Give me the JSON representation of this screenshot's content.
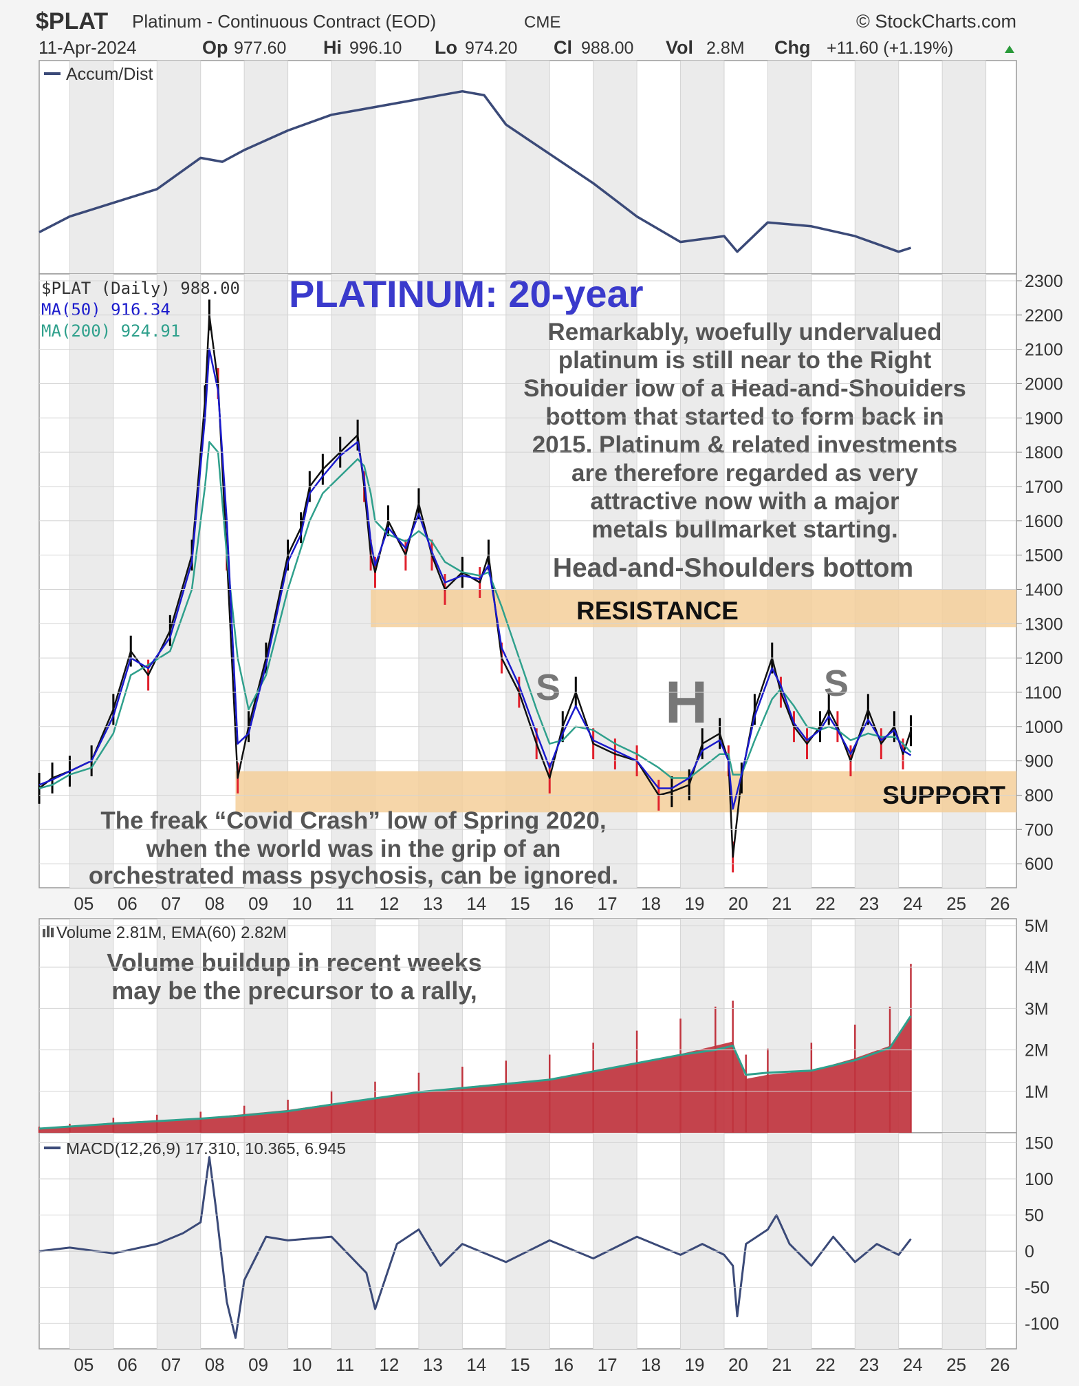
{
  "header": {
    "symbol": "$PLAT",
    "name": "Platinum - Continuous Contract (EOD)",
    "exchange": "CME",
    "copyright": "© StockCharts.com",
    "date": "11-Apr-2024",
    "op_label": "Op",
    "op": "977.60",
    "hi_label": "Hi",
    "hi": "996.10",
    "lo_label": "Lo",
    "lo": "974.20",
    "cl_label": "Cl",
    "cl": "988.00",
    "vol_label": "Vol",
    "vol": "2.8M",
    "chg_label": "Chg",
    "chg": "+11.60 (+1.19%)",
    "chg_icon": "up-triangle-icon"
  },
  "colors": {
    "price_up": "#000000",
    "price_down": "#e0202c",
    "ma50": "#1a1acc",
    "ma200": "#2fa08c",
    "line": "#3b4a78",
    "volume": "#c0343e",
    "band": "#f5cf9a",
    "title": "#3a3acc",
    "annotation": "#555555"
  },
  "chart_data": [
    {
      "type": "line",
      "panel": "accum-dist",
      "legend": "Accum/Dist",
      "x": [
        2004.3,
        2005,
        2006,
        2007,
        2008,
        2008.5,
        2009,
        2010,
        2011,
        2012,
        2013,
        2014,
        2014.5,
        2015,
        2016,
        2017,
        2018,
        2019,
        2020,
        2020.3,
        2021,
        2022,
        2023,
        2024,
        2024.28
      ],
      "values": [
        0,
        8,
        15,
        22,
        38,
        36,
        42,
        52,
        60,
        64,
        68,
        72,
        70,
        55,
        40,
        25,
        8,
        -5,
        -2,
        -10,
        5,
        3,
        -2,
        -10,
        -8
      ]
    },
    {
      "type": "line",
      "panel": "price",
      "title": "PLATINUM: 20-year",
      "legend": [
        "$PLAT (Daily) 988.00",
        "MA(50) 916.34",
        "MA(200) 924.91"
      ],
      "x_ticks": [
        "05",
        "06",
        "07",
        "08",
        "09",
        "10",
        "11",
        "12",
        "13",
        "14",
        "15",
        "16",
        "17",
        "18",
        "19",
        "20",
        "21",
        "22",
        "23",
        "24",
        "25",
        "26"
      ],
      "y_ticks": [
        600,
        700,
        800,
        900,
        1000,
        1100,
        1200,
        1300,
        1400,
        1500,
        1600,
        1700,
        1800,
        1900,
        2000,
        2100,
        2200,
        2300
      ],
      "ylim": [
        530,
        2320
      ],
      "x": [
        2004.3,
        2004.6,
        2005,
        2005.5,
        2006,
        2006.4,
        2006.8,
        2007.3,
        2007.8,
        2008.1,
        2008.2,
        2008.4,
        2008.6,
        2008.85,
        2009.1,
        2009.5,
        2010,
        2010.3,
        2010.5,
        2010.8,
        2011.2,
        2011.6,
        2011.75,
        2011.9,
        2012,
        2012.3,
        2012.7,
        2013,
        2013.3,
        2013.6,
        2014,
        2014.4,
        2014.6,
        2014.9,
        2015.3,
        2015.7,
        2016,
        2016.3,
        2016.6,
        2017,
        2017.5,
        2018,
        2018.5,
        2018.8,
        2019.2,
        2019.5,
        2019.9,
        2020.1,
        2020.2,
        2020.4,
        2020.7,
        2021.1,
        2021.3,
        2021.6,
        2021.9,
        2022.2,
        2022.4,
        2022.6,
        2022.9,
        2023.3,
        2023.6,
        2023.9,
        2024.1,
        2024.28
      ],
      "series": [
        {
          "name": "$PLAT (Daily)",
          "values": [
            820,
            850,
            870,
            900,
            1050,
            1220,
            1150,
            1280,
            1500,
            1950,
            2200,
            2000,
            1500,
            850,
            1000,
            1200,
            1500,
            1580,
            1700,
            1750,
            1800,
            1850,
            1700,
            1500,
            1450,
            1600,
            1500,
            1650,
            1500,
            1400,
            1450,
            1420,
            1500,
            1200,
            1100,
            950,
            850,
            1000,
            1100,
            950,
            920,
            900,
            800,
            810,
            830,
            950,
            980,
            900,
            620,
            850,
            1050,
            1200,
            1100,
            1000,
            950,
            1000,
            1050,
            1000,
            900,
            1050,
            950,
            1000,
            920,
            988
          ]
        },
        {
          "name": "MA(50)",
          "values": [
            830,
            845,
            870,
            900,
            1030,
            1200,
            1170,
            1260,
            1480,
            1900,
            2100,
            1980,
            1600,
            950,
            980,
            1180,
            1480,
            1560,
            1680,
            1730,
            1790,
            1830,
            1720,
            1540,
            1470,
            1580,
            1520,
            1620,
            1510,
            1420,
            1440,
            1430,
            1470,
            1230,
            1120,
            980,
            880,
            980,
            1060,
            960,
            930,
            900,
            820,
            820,
            850,
            930,
            960,
            900,
            760,
            860,
            1030,
            1170,
            1120,
            1010,
            960,
            990,
            1030,
            990,
            920,
            1020,
            960,
            990,
            930,
            916
          ]
        },
        {
          "name": "MA(200)",
          "values": [
            820,
            830,
            860,
            880,
            980,
            1150,
            1180,
            1220,
            1400,
            1700,
            1830,
            1800,
            1500,
            1200,
            1050,
            1150,
            1400,
            1520,
            1600,
            1680,
            1730,
            1780,
            1760,
            1680,
            1600,
            1560,
            1540,
            1570,
            1540,
            1480,
            1450,
            1440,
            1450,
            1350,
            1200,
            1050,
            950,
            960,
            1000,
            990,
            950,
            920,
            880,
            850,
            850,
            880,
            920,
            920,
            860,
            860,
            960,
            1080,
            1110,
            1060,
            1000,
            990,
            1000,
            990,
            960,
            980,
            970,
            970,
            950,
            925
          ]
        }
      ],
      "annotations": {
        "resistance_label": "RESISTANCE",
        "support_label": "SUPPORT",
        "resistance_band": [
          1290,
          1400
        ],
        "support_band": [
          750,
          870
        ],
        "pattern_label": "Head-and-Shoulders bottom",
        "left_shoulder": "S",
        "head": "H",
        "right_shoulder": "S"
      }
    },
    {
      "type": "bar",
      "panel": "volume",
      "legend": "Volume 2.81M, EMA(60) 2.82M",
      "y_ticks": [
        "1M",
        "2M",
        "3M",
        "4M",
        "5M"
      ],
      "ylim": [
        0,
        5000000
      ],
      "x": [
        2004.3,
        2005,
        2006,
        2007,
        2008,
        2009,
        2010,
        2011,
        2012,
        2013,
        2014,
        2015,
        2016,
        2017,
        2018,
        2019,
        2019.8,
        2020.2,
        2020.5,
        2021,
        2022,
        2023,
        2023.8,
        2024.28
      ],
      "values": [
        100000,
        150000,
        250000,
        300000,
        350000,
        450000,
        550000,
        700000,
        850000,
        1000000,
        1100000,
        1200000,
        1300000,
        1500000,
        1700000,
        1900000,
        2100000,
        2200000,
        1300000,
        1400000,
        1500000,
        1800000,
        2100000,
        2810000
      ],
      "ema": [
        100000,
        150000,
        220000,
        280000,
        340000,
        420000,
        520000,
        680000,
        830000,
        980000,
        1080000,
        1180000,
        1280000,
        1480000,
        1680000,
        1880000,
        2000000,
        2100000,
        1400000,
        1450000,
        1500000,
        1750000,
        2050000,
        2820000
      ]
    },
    {
      "type": "line",
      "panel": "macd",
      "legend": "MACD(12,26,9) 17.310, 10.365, 6.945",
      "y_ticks": [
        -100,
        -50,
        0,
        50,
        100,
        150
      ],
      "ylim": [
        -135,
        160
      ],
      "x": [
        2004.3,
        2005,
        2006,
        2007,
        2007.6,
        2008,
        2008.2,
        2008.35,
        2008.6,
        2008.8,
        2009,
        2009.5,
        2010,
        2011,
        2011.8,
        2012,
        2012.5,
        2013,
        2013.5,
        2014,
        2015,
        2016,
        2017,
        2018,
        2019,
        2019.5,
        2020,
        2020.2,
        2020.3,
        2020.5,
        2021,
        2021.2,
        2021.5,
        2022,
        2022.5,
        2023,
        2023.5,
        2024,
        2024.28
      ],
      "values": [
        0,
        5,
        -3,
        10,
        25,
        40,
        130,
        60,
        -70,
        -120,
        -40,
        20,
        15,
        20,
        -30,
        -80,
        10,
        30,
        -20,
        10,
        -15,
        15,
        -10,
        20,
        -5,
        10,
        -5,
        -20,
        -90,
        10,
        30,
        50,
        10,
        -20,
        20,
        -15,
        10,
        -5,
        17
      ]
    }
  ],
  "axis_labels": {
    "x_ticks": [
      "05",
      "06",
      "07",
      "08",
      "09",
      "10",
      "11",
      "12",
      "13",
      "14",
      "15",
      "16",
      "17",
      "18",
      "19",
      "20",
      "21",
      "22",
      "23",
      "24",
      "25",
      "26"
    ]
  },
  "text_annotations": {
    "main": [
      "Remarkably, woefully undervalued",
      "platinum is still near to the Right",
      "Shoulder low of a Head-and-Shoulders",
      "bottom that started to form back in",
      "2015. Platinum & related investments",
      "are therefore regarded as very",
      "attractive now with a major",
      "metals bullmarket starting."
    ],
    "covid": [
      "The freak “Covid Crash” low of Spring 2020,",
      "when the world was in the grip of an",
      "orchestrated mass psychosis, can be ignored."
    ],
    "volume_note": [
      "Volume buildup in recent weeks",
      "may be the precursor to a rally,"
    ]
  }
}
